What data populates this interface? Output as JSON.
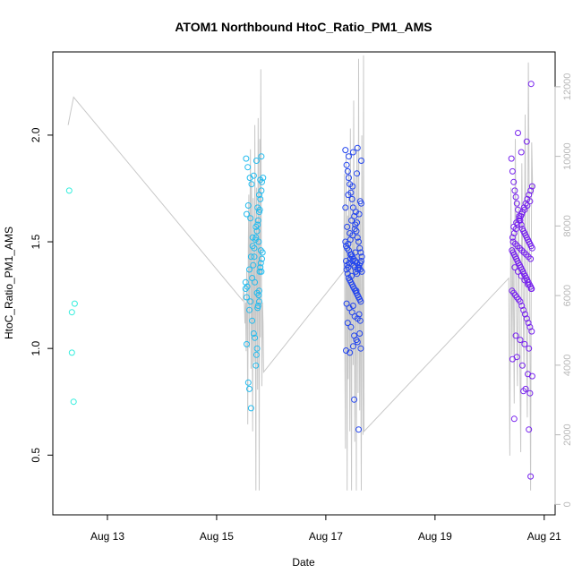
{
  "chart_data": {
    "type": "scatter",
    "title": "ATOM1 Northbound HtoC_Ratio_PM1_AMS",
    "xlabel": "Date",
    "ylabel": "HtoC_Ratio_PM1_AMS",
    "xlim": [
      12.0,
      21.2
    ],
    "ylim": [
      0.22,
      2.39
    ],
    "y2lim": [
      -300,
      13000
    ],
    "x_ticks": [
      {
        "value": 13,
        "label": "Aug 13"
      },
      {
        "value": 15,
        "label": "Aug 15"
      },
      {
        "value": 17,
        "label": "Aug 17"
      },
      {
        "value": 19,
        "label": "Aug 19"
      },
      {
        "value": 21,
        "label": "Aug 21"
      }
    ],
    "y_ticks": [
      {
        "value": 0.5,
        "label": "0.5"
      },
      {
        "value": 1.0,
        "label": "1.0"
      },
      {
        "value": 1.5,
        "label": "1.5"
      },
      {
        "value": 2.0,
        "label": "2.0"
      }
    ],
    "y2_ticks": [
      {
        "value": 0,
        "label": "0"
      },
      {
        "value": 2000,
        "label": "2000"
      },
      {
        "value": 4000,
        "label": "4000"
      },
      {
        "value": 6000,
        "label": "6000"
      },
      {
        "value": 8000,
        "label": "8000"
      },
      {
        "value": 10000,
        "label": "10000"
      },
      {
        "value": 12000,
        "label": "12000"
      }
    ],
    "colors": {
      "seg1": "#33eedd",
      "seg2": "#22bbee",
      "seg3": "#2244ee",
      "seg4": "#7722ee",
      "line": "#c8c8c8",
      "axis": "#000000",
      "axis_right": "#b8b8b8"
    },
    "series": [
      {
        "name": "segment-1",
        "color_key": "seg1",
        "x": [
          12.3,
          12.35,
          12.4,
          12.35,
          12.38
        ],
        "y": [
          1.74,
          1.17,
          1.21,
          0.98,
          0.75
        ]
      },
      {
        "name": "segment-2",
        "color_key": "seg2",
        "x": [
          15.53,
          15.55,
          15.6,
          15.62,
          15.65,
          15.68,
          15.7,
          15.72,
          15.73,
          15.74,
          15.75,
          15.76,
          15.77,
          15.78,
          15.79,
          15.8,
          15.81,
          15.82,
          15.83,
          15.84,
          15.55,
          15.58,
          15.6,
          15.63,
          15.65,
          15.67,
          15.69,
          15.71,
          15.72,
          15.74,
          15.75,
          15.76,
          15.78,
          15.79,
          15.8,
          15.82,
          15.83,
          15.85,
          15.55,
          15.58,
          15.62,
          15.66,
          15.69,
          15.72,
          15.75,
          15.78,
          15.8,
          15.82,
          15.54,
          15.57,
          15.61,
          15.64,
          15.68,
          15.73,
          15.77,
          15.81,
          15.53,
          15.56,
          15.6,
          15.63,
          15.66,
          15.7,
          15.74,
          15.78
        ],
        "y": [
          1.28,
          1.24,
          1.18,
          1.22,
          1.13,
          1.07,
          1.05,
          0.92,
          0.97,
          1.0,
          1.19,
          1.2,
          1.25,
          1.27,
          1.36,
          1.38,
          1.4,
          1.36,
          1.42,
          1.45,
          1.02,
          0.84,
          0.81,
          0.72,
          1.33,
          1.39,
          1.43,
          1.51,
          1.52,
          1.55,
          1.58,
          1.6,
          1.64,
          1.65,
          1.7,
          1.74,
          1.78,
          1.8,
          1.63,
          1.67,
          1.61,
          1.52,
          1.47,
          1.57,
          1.66,
          1.72,
          1.79,
          1.9,
          1.89,
          1.85,
          1.8,
          1.77,
          1.81,
          1.88,
          1.5,
          1.46,
          1.31,
          1.29,
          1.37,
          1.43,
          1.48,
          1.31,
          1.26,
          1.22
        ]
      },
      {
        "name": "segment-3",
        "color_key": "seg3",
        "x": [
          17.36,
          17.38,
          17.4,
          17.42,
          17.44,
          17.46,
          17.48,
          17.5,
          17.52,
          17.54,
          17.56,
          17.58,
          17.6,
          17.62,
          17.64,
          17.66,
          17.37,
          17.39,
          17.41,
          17.43,
          17.45,
          17.47,
          17.49,
          17.51,
          17.53,
          17.55,
          17.57,
          17.59,
          17.61,
          17.63,
          17.65,
          17.38,
          17.4,
          17.42,
          17.44,
          17.46,
          17.48,
          17.5,
          17.52,
          17.54,
          17.56,
          17.58,
          17.6,
          17.62,
          17.64,
          17.36,
          17.39,
          17.42,
          17.45,
          17.48,
          17.51,
          17.54,
          17.57,
          17.6,
          17.63,
          17.66,
          17.37,
          17.41,
          17.45,
          17.49,
          17.53,
          17.57,
          17.61,
          17.65,
          17.38,
          17.43,
          17.48,
          17.53,
          17.58,
          17.63,
          17.4,
          17.46,
          17.52,
          17.58,
          17.64,
          17.37,
          17.44,
          17.5,
          17.56,
          17.62,
          17.39,
          17.47,
          17.55,
          17.63,
          17.41,
          17.49,
          17.57,
          17.65,
          17.42,
          17.5,
          17.58,
          17.36,
          17.52,
          17.6,
          17.44,
          17.54,
          17.47,
          17.56,
          17.5,
          17.61
        ],
        "y": [
          1.93,
          1.86,
          1.83,
          1.8,
          1.77,
          1.73,
          1.7,
          1.66,
          1.62,
          1.58,
          1.55,
          1.52,
          1.5,
          1.47,
          1.45,
          1.43,
          1.41,
          1.39,
          1.38,
          1.4,
          1.42,
          1.44,
          1.41,
          1.39,
          1.38,
          1.36,
          1.35,
          1.37,
          1.39,
          1.4,
          1.41,
          1.37,
          1.35,
          1.33,
          1.32,
          1.31,
          1.3,
          1.29,
          1.28,
          1.27,
          1.26,
          1.25,
          1.24,
          1.23,
          1.22,
          1.5,
          1.47,
          1.46,
          1.44,
          1.43,
          1.42,
          1.41,
          1.4,
          1.38,
          1.37,
          1.36,
          1.48,
          1.49,
          1.51,
          1.53,
          1.56,
          1.59,
          1.63,
          1.68,
          1.21,
          1.19,
          1.17,
          1.15,
          1.14,
          1.13,
          1.12,
          1.1,
          1.06,
          1.03,
          1.0,
          0.99,
          0.98,
          1.01,
          1.04,
          1.07,
          1.57,
          1.6,
          1.64,
          1.69,
          1.72,
          1.76,
          1.82,
          1.88,
          1.9,
          1.92,
          1.94,
          1.66,
          0.76,
          0.62,
          1.54,
          1.45,
          1.34,
          1.27,
          1.2,
          1.16
        ]
      },
      {
        "name": "segment-4",
        "color_key": "seg4",
        "x": [
          20.4,
          20.42,
          20.44,
          20.46,
          20.48,
          20.5,
          20.52,
          20.54,
          20.56,
          20.58,
          20.6,
          20.62,
          20.64,
          20.66,
          20.68,
          20.7,
          20.72,
          20.74,
          20.76,
          20.78,
          20.41,
          20.43,
          20.45,
          20.47,
          20.49,
          20.51,
          20.53,
          20.55,
          20.57,
          20.59,
          20.61,
          20.63,
          20.65,
          20.67,
          20.69,
          20.71,
          20.73,
          20.75,
          20.77,
          20.42,
          20.45,
          20.48,
          20.51,
          20.54,
          20.57,
          20.6,
          20.63,
          20.66,
          20.69,
          20.72,
          20.75,
          20.78,
          20.41,
          20.44,
          20.47,
          20.5,
          20.53,
          20.56,
          20.59,
          20.62,
          20.65,
          20.68,
          20.71,
          20.74,
          20.77,
          20.43,
          20.47,
          20.51,
          20.55,
          20.59,
          20.63,
          20.67,
          20.71,
          20.75,
          20.44,
          20.49,
          20.54,
          20.59,
          20.64,
          20.69,
          20.74,
          20.46,
          20.52,
          20.58,
          20.64,
          20.7,
          20.76,
          20.48,
          20.56,
          20.64,
          20.72,
          20.5,
          20.6,
          20.7,
          20.42,
          20.62,
          20.74,
          20.45,
          20.66,
          20.78,
          20.52,
          20.68,
          20.58,
          20.72,
          20.75,
          20.76
        ],
        "y": [
          1.89,
          1.83,
          1.78,
          1.74,
          1.71,
          1.68,
          1.65,
          1.62,
          1.6,
          1.58,
          1.56,
          1.55,
          1.54,
          1.53,
          1.52,
          1.51,
          1.5,
          1.49,
          1.48,
          1.47,
          1.46,
          1.45,
          1.44,
          1.43,
          1.42,
          1.41,
          1.4,
          1.39,
          1.38,
          1.37,
          1.36,
          1.35,
          1.34,
          1.33,
          1.32,
          1.31,
          1.3,
          1.29,
          1.28,
          1.52,
          1.54,
          1.56,
          1.58,
          1.6,
          1.62,
          1.64,
          1.66,
          1.68,
          1.7,
          1.72,
          1.74,
          1.76,
          1.27,
          1.26,
          1.25,
          1.24,
          1.23,
          1.22,
          1.2,
          1.18,
          1.16,
          1.14,
          1.12,
          1.1,
          1.08,
          1.5,
          1.49,
          1.48,
          1.47,
          1.46,
          1.45,
          1.44,
          1.43,
          1.42,
          1.57,
          1.59,
          1.61,
          1.63,
          1.65,
          1.67,
          1.69,
          1.38,
          1.36,
          1.34,
          1.32,
          1.3,
          1.28,
          1.06,
          1.04,
          1.02,
          1.0,
          0.96,
          0.92,
          0.88,
          0.95,
          0.8,
          0.79,
          0.67,
          0.81,
          0.87,
          2.01,
          1.97,
          1.92,
          0.62,
          0.4,
          2.24
        ]
      }
    ],
    "line_series": {
      "name": "right-axis-trace",
      "axis": "y2",
      "color_key": "line",
      "x": [
        12.28,
        12.33,
        12.38,
        15.48,
        15.5,
        15.52,
        15.53,
        15.54,
        15.55,
        15.56,
        15.57,
        15.58,
        15.59,
        15.6,
        15.61,
        15.62,
        15.63,
        15.64,
        15.65,
        15.66,
        15.67,
        15.68,
        15.69,
        15.7,
        15.71,
        15.72,
        15.73,
        15.74,
        15.75,
        15.76,
        15.77,
        15.78,
        15.79,
        15.8,
        15.81,
        15.82,
        15.83,
        15.84,
        15.85,
        15.86,
        17.33,
        17.34,
        17.35,
        17.36,
        17.37,
        17.38,
        17.39,
        17.4,
        17.41,
        17.42,
        17.43,
        17.44,
        17.45,
        17.46,
        17.47,
        17.48,
        17.49,
        17.5,
        17.51,
        17.52,
        17.53,
        17.54,
        17.55,
        17.56,
        17.57,
        17.58,
        17.59,
        17.6,
        17.61,
        17.62,
        17.63,
        17.64,
        17.65,
        17.66,
        17.67,
        17.68,
        17.69,
        17.7,
        20.35,
        20.37,
        20.39,
        20.41,
        20.43,
        20.45,
        20.47,
        20.49,
        20.51,
        20.53,
        20.55,
        20.57,
        20.59,
        20.61,
        20.63,
        20.65,
        20.67,
        20.69,
        20.71,
        20.73,
        20.75,
        20.77,
        20.79,
        20.81
      ],
      "y": [
        10900,
        11300,
        11700,
        5850,
        6200,
        5200,
        5800,
        4400,
        6700,
        5500,
        2300,
        7400,
        8900,
        4500,
        7500,
        10200,
        3900,
        9300,
        5400,
        2100,
        8800,
        6300,
        4100,
        10900,
        5200,
        400,
        9100,
        6600,
        3300,
        11100,
        7300,
        400,
        10500,
        4800,
        12500,
        6900,
        3400,
        5800,
        5200,
        3800,
        6700,
        9500,
        4200,
        1600,
        10100,
        7200,
        400,
        8300,
        3600,
        9600,
        6100,
        2100,
        10800,
        5700,
        400,
        9200,
        7300,
        4000,
        11600,
        6400,
        1800,
        9400,
        5300,
        400,
        10200,
        7000,
        3200,
        12800,
        5800,
        2700,
        8600,
        4400,
        400,
        10600,
        6800,
        2000,
        12900,
        2100,
        6500,
        1400,
        9100,
        4300,
        7800,
        2900,
        10500,
        5900,
        3400,
        8700,
        4600,
        1500,
        9800,
        6300,
        3900,
        11200,
        5400,
        2500,
        12700,
        7600,
        400,
        10400,
        8900,
        9200
      ]
    }
  }
}
